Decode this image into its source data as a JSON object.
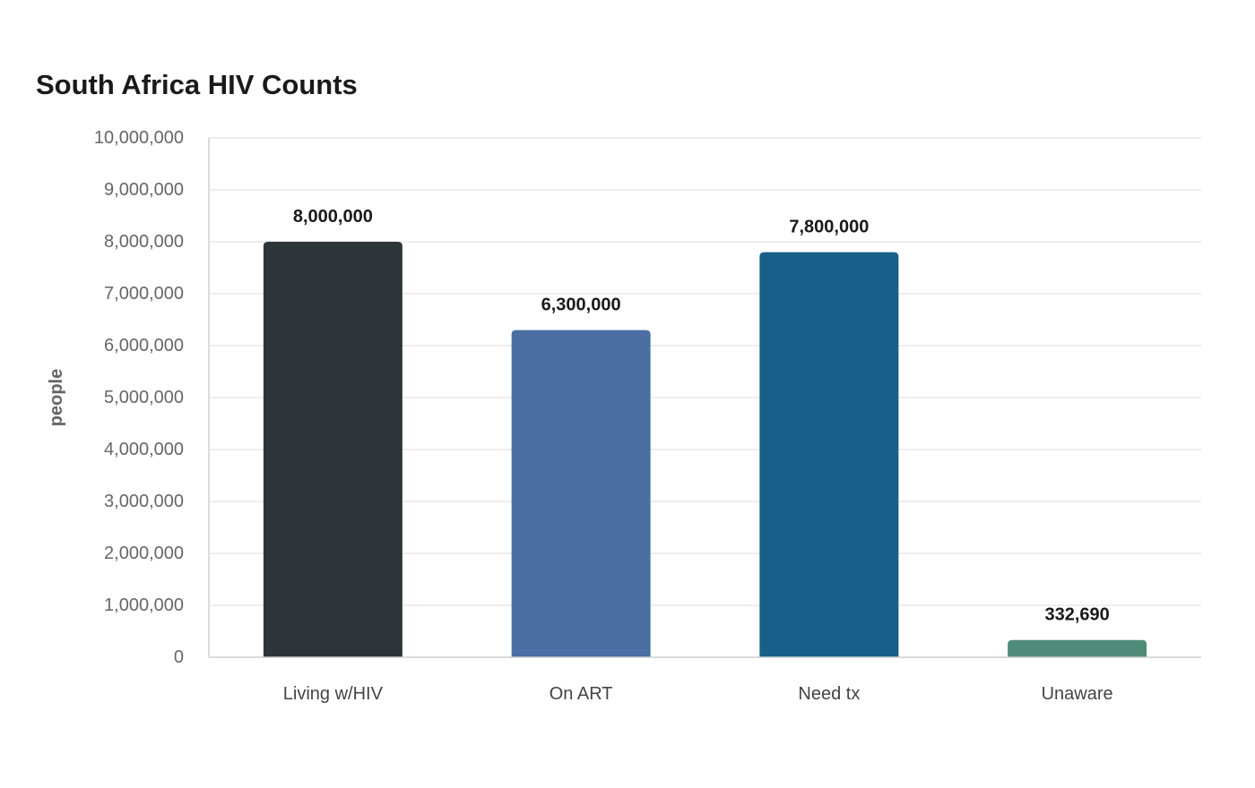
{
  "chart_data": {
    "type": "bar",
    "title": "South Africa HIV Counts",
    "xlabel": "",
    "ylabel": "people",
    "categories": [
      "Living w/HIV",
      "On ART",
      "Need tx",
      "Unaware"
    ],
    "values": [
      8000000,
      6300000,
      7800000,
      332690
    ],
    "data_labels": [
      "8,000,000",
      "6,300,000",
      "7,800,000",
      "332,690"
    ],
    "colors": [
      "#2e3538",
      "#4b6fa3",
      "#186089",
      "#4e8b78"
    ],
    "ylim": [
      0,
      10000000
    ],
    "yticks": [
      0,
      1000000,
      2000000,
      3000000,
      4000000,
      5000000,
      6000000,
      7000000,
      8000000,
      9000000,
      10000000
    ],
    "ytick_labels": [
      "0",
      "1,000,000",
      "2,000,000",
      "3,000,000",
      "4,000,000",
      "5,000,000",
      "6,000,000",
      "7,000,000",
      "8,000,000",
      "9,000,000",
      "10,000,000"
    ],
    "grid": true,
    "legend": "none"
  }
}
